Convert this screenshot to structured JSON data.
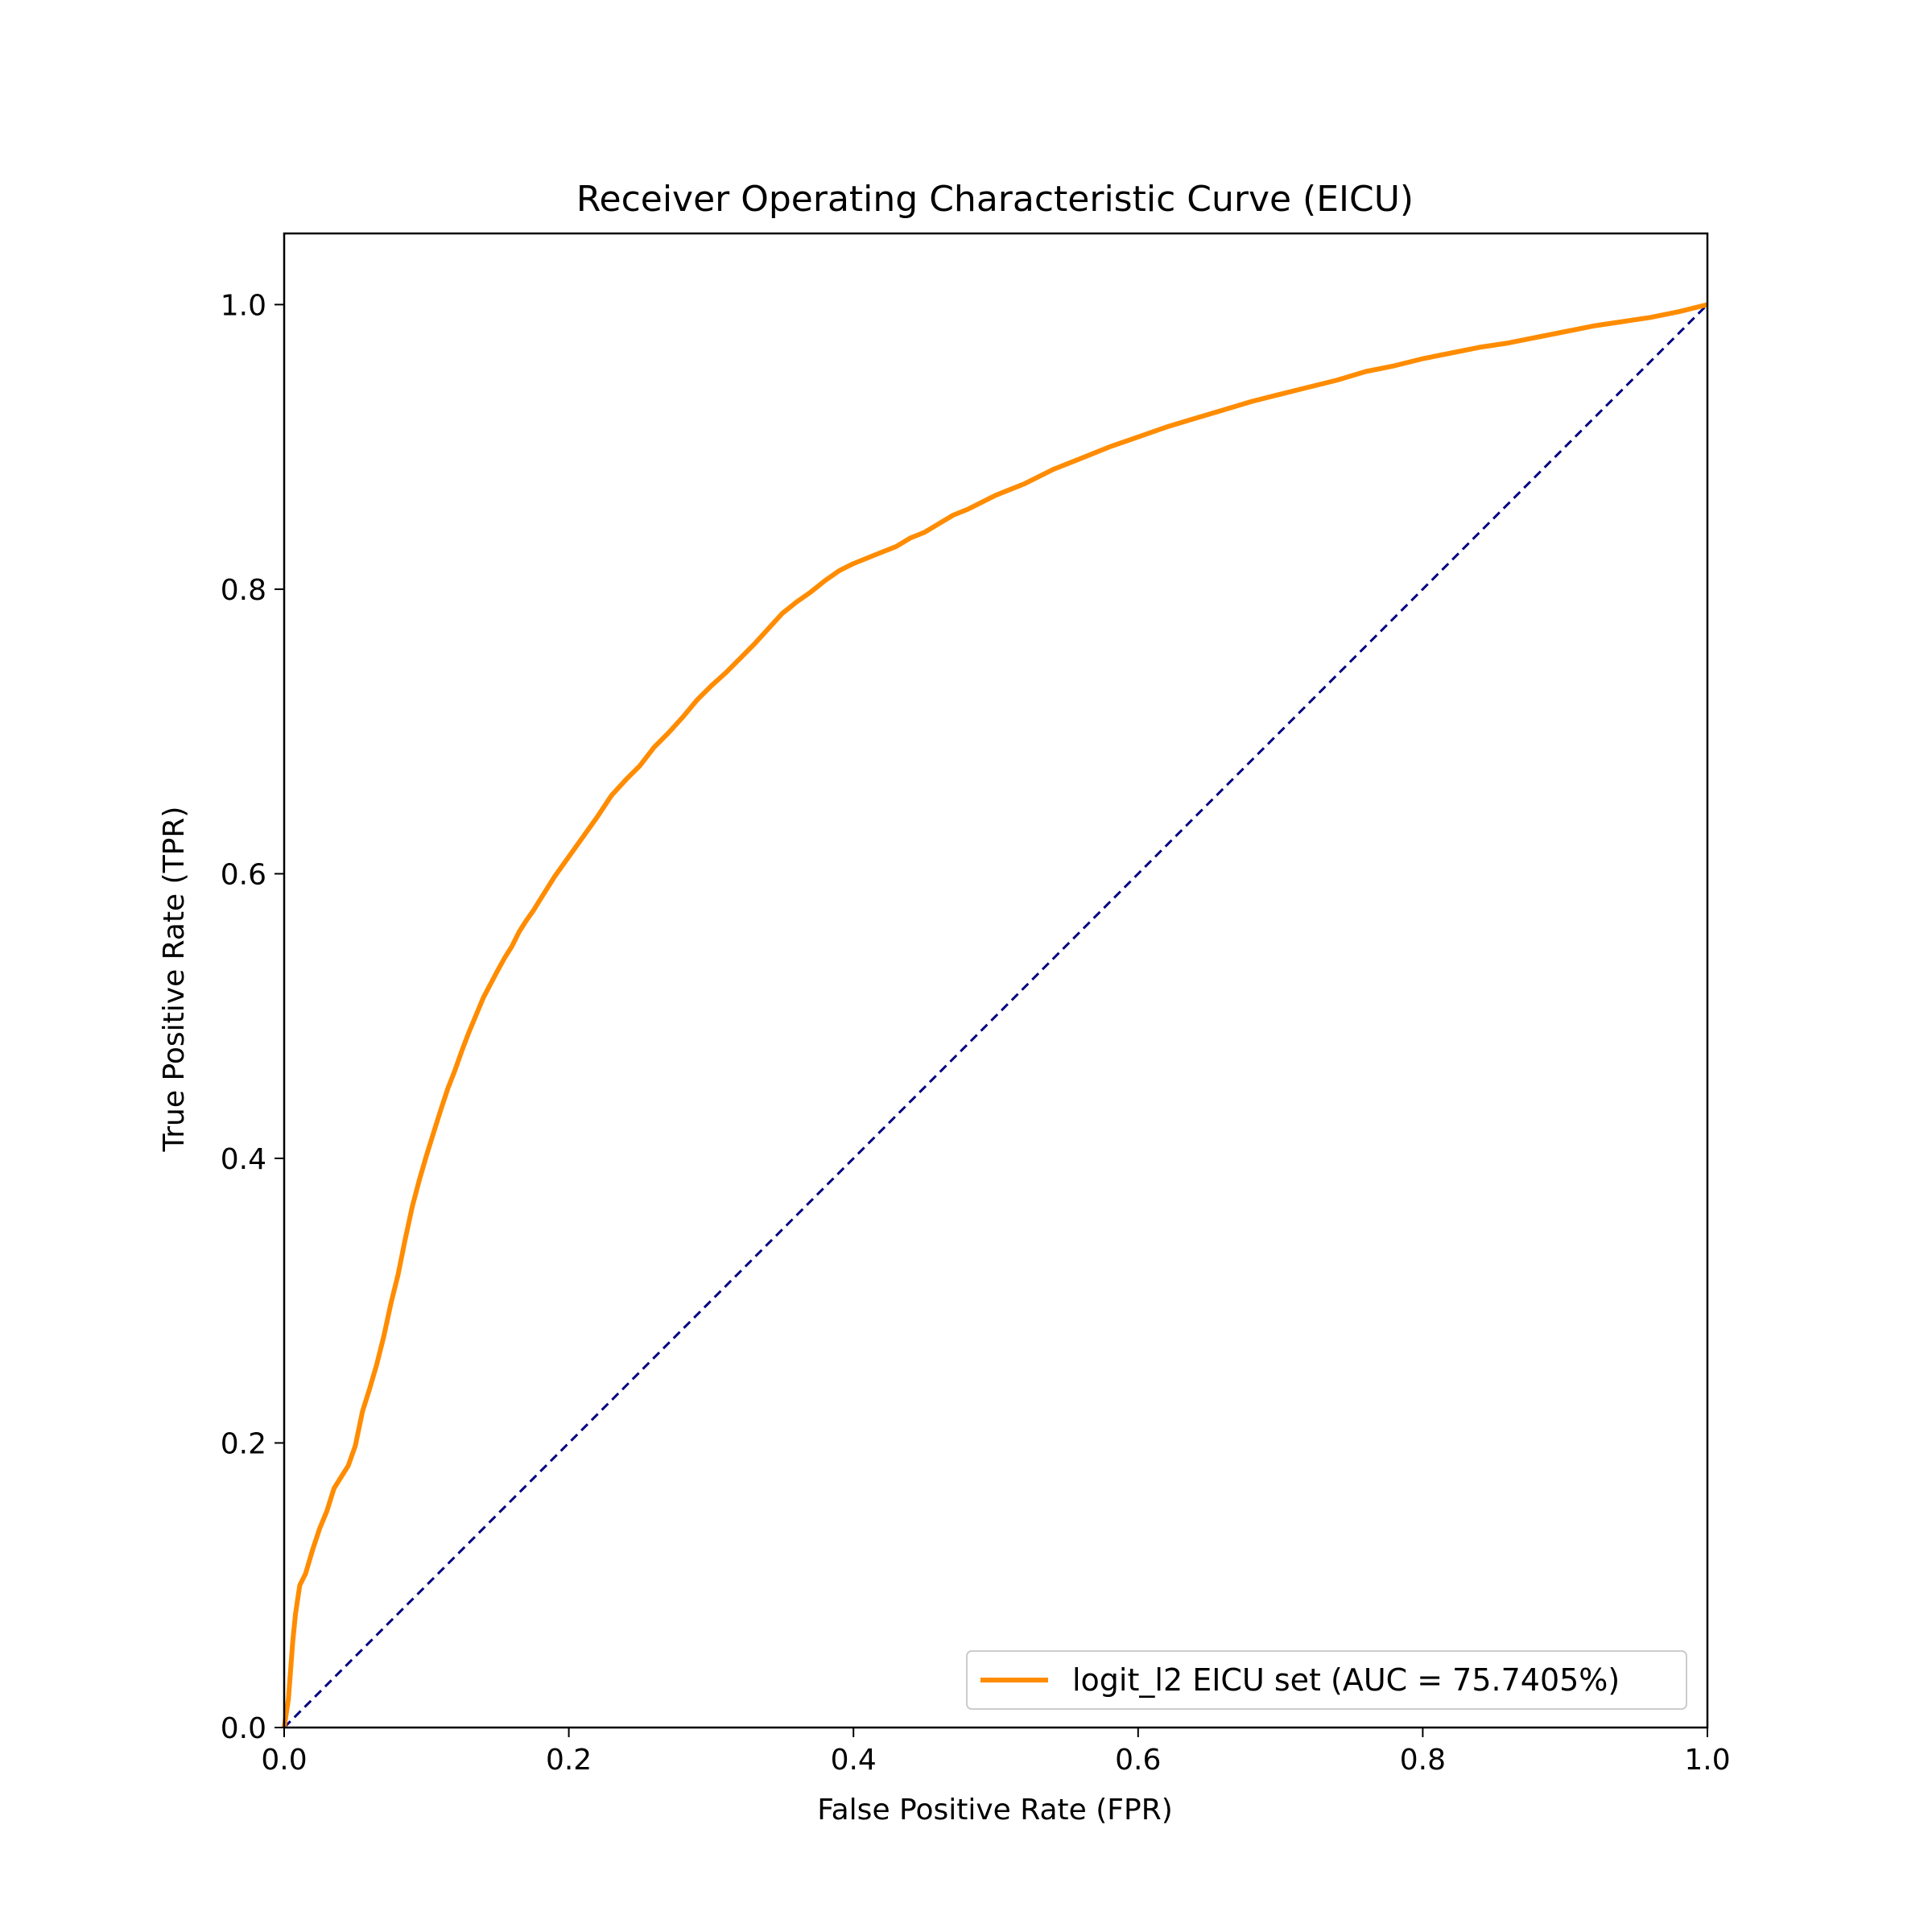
{
  "chart_data": {
    "type": "line",
    "title": "Receiver Operating Characteristic Curve (EICU)",
    "xlabel": "False Positive Rate (FPR)",
    "ylabel": "True Positive Rate (TPR)",
    "xlim": [
      0.0,
      1.0
    ],
    "ylim": [
      0.0,
      1.05
    ],
    "xticks": [
      "0.0",
      "0.2",
      "0.4",
      "0.6",
      "0.8",
      "1.0"
    ],
    "yticks": [
      "0.0",
      "0.2",
      "0.4",
      "0.6",
      "0.8",
      "1.0"
    ],
    "grid": false,
    "legend_position": "lower-right",
    "series": [
      {
        "name": "logit_l2 EICU set (AUC = 75.7405%)",
        "color": "#ff8c00",
        "line_style": "solid",
        "x": [
          0.0,
          0.003,
          0.006,
          0.008,
          0.011,
          0.015,
          0.02,
          0.025,
          0.03,
          0.035,
          0.04,
          0.045,
          0.05,
          0.055,
          0.06,
          0.065,
          0.07,
          0.075,
          0.08,
          0.085,
          0.09,
          0.095,
          0.1,
          0.105,
          0.11,
          0.115,
          0.12,
          0.125,
          0.13,
          0.14,
          0.15,
          0.155,
          0.16,
          0.165,
          0.17,
          0.175,
          0.18,
          0.19,
          0.2,
          0.21,
          0.22,
          0.23,
          0.24,
          0.25,
          0.26,
          0.27,
          0.28,
          0.29,
          0.3,
          0.31,
          0.32,
          0.33,
          0.34,
          0.35,
          0.36,
          0.37,
          0.38,
          0.39,
          0.4,
          0.41,
          0.42,
          0.43,
          0.44,
          0.45,
          0.46,
          0.47,
          0.48,
          0.49,
          0.5,
          0.52,
          0.54,
          0.56,
          0.58,
          0.6,
          0.62,
          0.64,
          0.66,
          0.68,
          0.7,
          0.72,
          0.74,
          0.76,
          0.78,
          0.8,
          0.82,
          0.84,
          0.86,
          0.88,
          0.9,
          0.92,
          0.94,
          0.96,
          0.98,
          1.0
        ],
        "y": [
          0.0,
          0.02,
          0.06,
          0.08,
          0.1,
          0.108,
          0.125,
          0.14,
          0.152,
          0.168,
          0.176,
          0.184,
          0.198,
          0.222,
          0.238,
          0.255,
          0.275,
          0.298,
          0.318,
          0.343,
          0.366,
          0.385,
          0.402,
          0.418,
          0.434,
          0.449,
          0.462,
          0.476,
          0.489,
          0.513,
          0.532,
          0.541,
          0.549,
          0.559,
          0.567,
          0.574,
          0.582,
          0.598,
          0.612,
          0.626,
          0.64,
          0.655,
          0.666,
          0.676,
          0.689,
          0.699,
          0.71,
          0.722,
          0.732,
          0.741,
          0.751,
          0.761,
          0.772,
          0.783,
          0.791,
          0.798,
          0.806,
          0.813,
          0.818,
          0.822,
          0.826,
          0.83,
          0.836,
          0.84,
          0.846,
          0.852,
          0.856,
          0.861,
          0.866,
          0.874,
          0.884,
          0.892,
          0.9,
          0.907,
          0.914,
          0.92,
          0.926,
          0.932,
          0.937,
          0.942,
          0.947,
          0.953,
          0.957,
          0.962,
          0.966,
          0.97,
          0.973,
          0.977,
          0.981,
          0.985,
          0.988,
          0.991,
          0.995,
          1.0
        ]
      },
      {
        "name": "",
        "color": "#000080",
        "line_style": "dashed",
        "x": [
          0.0,
          1.0
        ],
        "y": [
          0.0,
          1.0
        ]
      }
    ]
  }
}
